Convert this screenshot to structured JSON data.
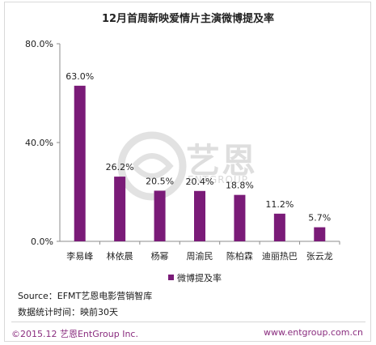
{
  "chart_data": {
    "type": "bar",
    "title": "12月首周新映爱情片主演微博提及率",
    "categories": [
      "李易峰",
      "林依晨",
      "杨幂",
      "周渝民",
      "陈柏霖",
      "迪丽热巴",
      "张云龙"
    ],
    "series": [
      {
        "name": "微博提及率",
        "values": [
          63.0,
          26.2,
          20.5,
          20.4,
          18.8,
          11.2,
          5.7
        ],
        "labels": [
          "63.0%",
          "26.2%",
          "20.5%",
          "20.4%",
          "18.8%",
          "11.2%",
          "5.7%"
        ]
      }
    ],
    "yticks": [
      "0.0%",
      "40.0%",
      "80.0%"
    ],
    "ytick_values": [
      0,
      40,
      80
    ],
    "ylim": [
      0,
      80
    ],
    "grid": false,
    "legend": "bottom-center",
    "bar_color": "#7a1b78"
  },
  "source": "Source：EFMT艺恩电影营销智库",
  "stat_note": "数据统计时间：映前30天",
  "copyright": "©2015.12 艺恩EntGroup Inc.",
  "website": "www.entgroup.com.cn",
  "watermark": {
    "brand": "艺恩",
    "sub": "ENTGROUP"
  }
}
